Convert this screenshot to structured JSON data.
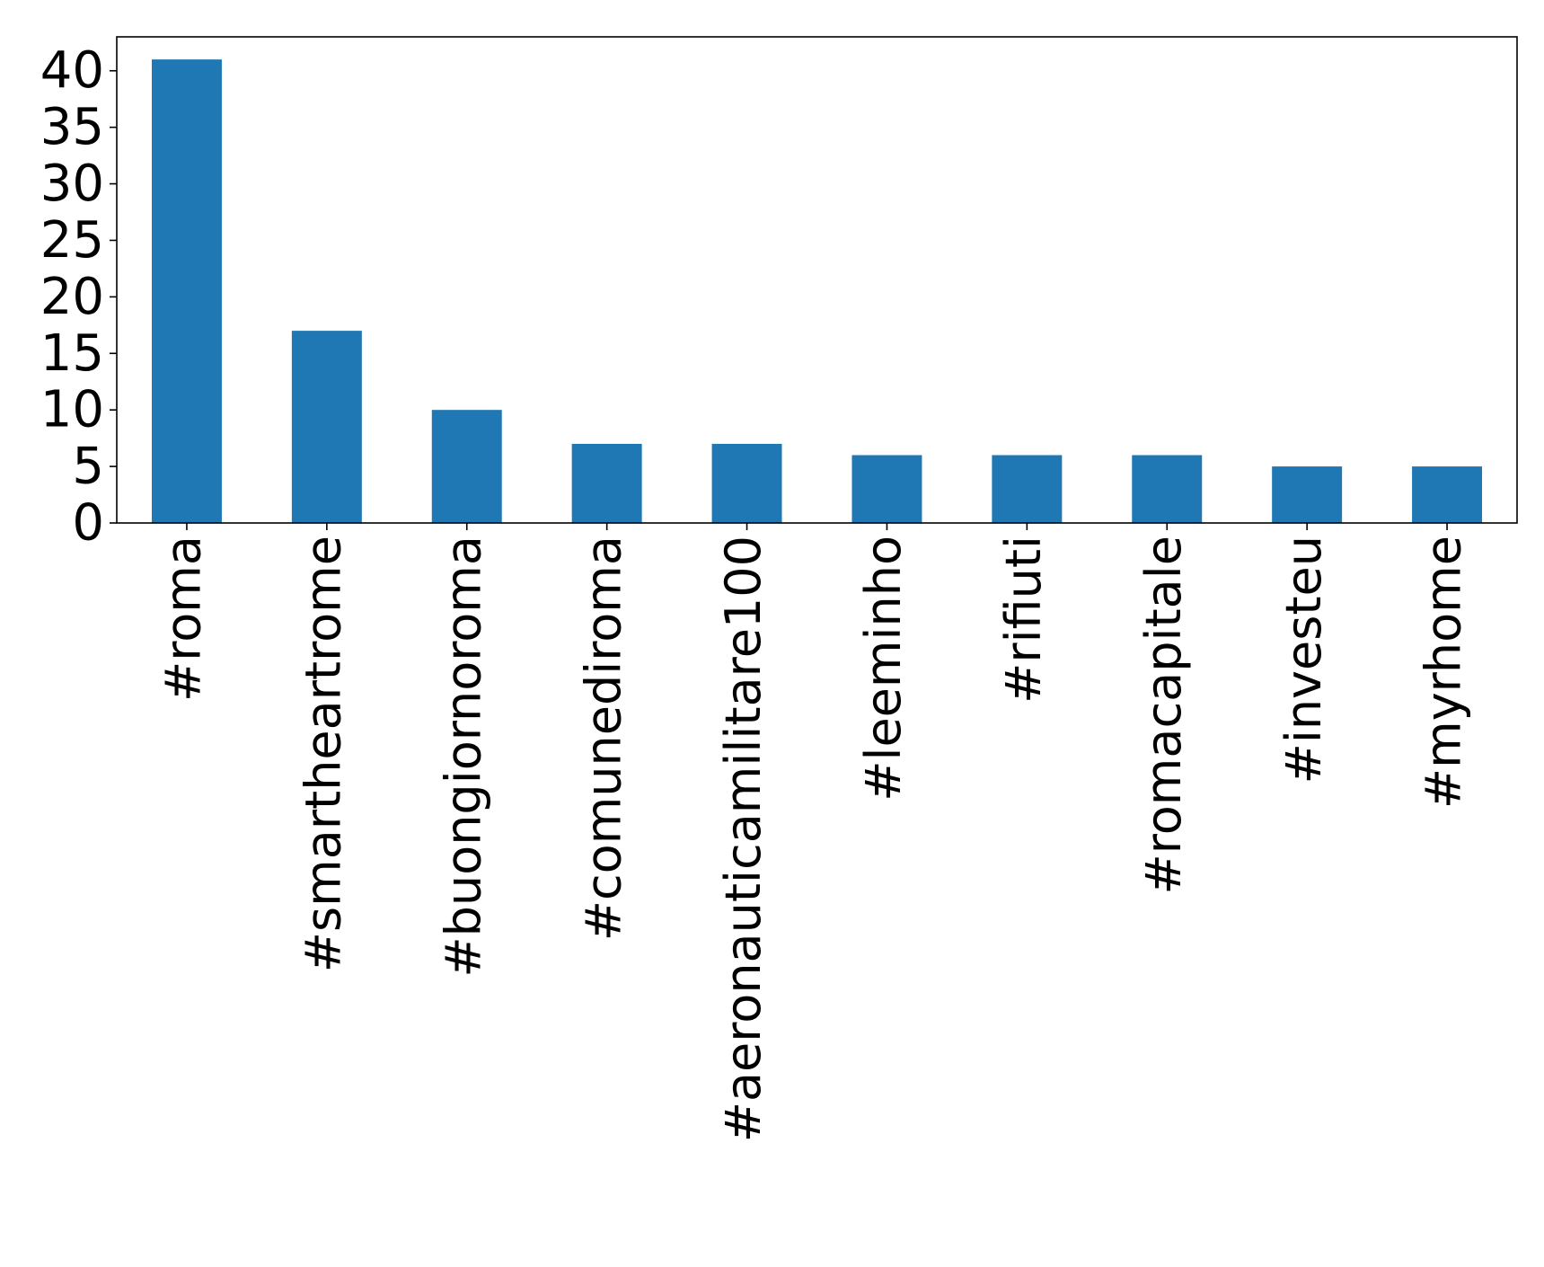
{
  "chart_data": {
    "type": "bar",
    "categories": [
      "#roma",
      "#smartheartrome",
      "#buongiornoroma",
      "#comunediroma",
      "#aeronauticamilitare100",
      "#leeminho",
      "#rifiuti",
      "#romacapitale",
      "#investeu",
      "#myrhome"
    ],
    "values": [
      41,
      17,
      10,
      7,
      7,
      6,
      6,
      6,
      5,
      5
    ],
    "yticks": [
      "0",
      "5",
      "10",
      "15",
      "20",
      "25",
      "30",
      "35",
      "40"
    ],
    "ylim": [
      0,
      43
    ],
    "bar_color": "#1f77b4",
    "grid": false,
    "legend": "none"
  }
}
